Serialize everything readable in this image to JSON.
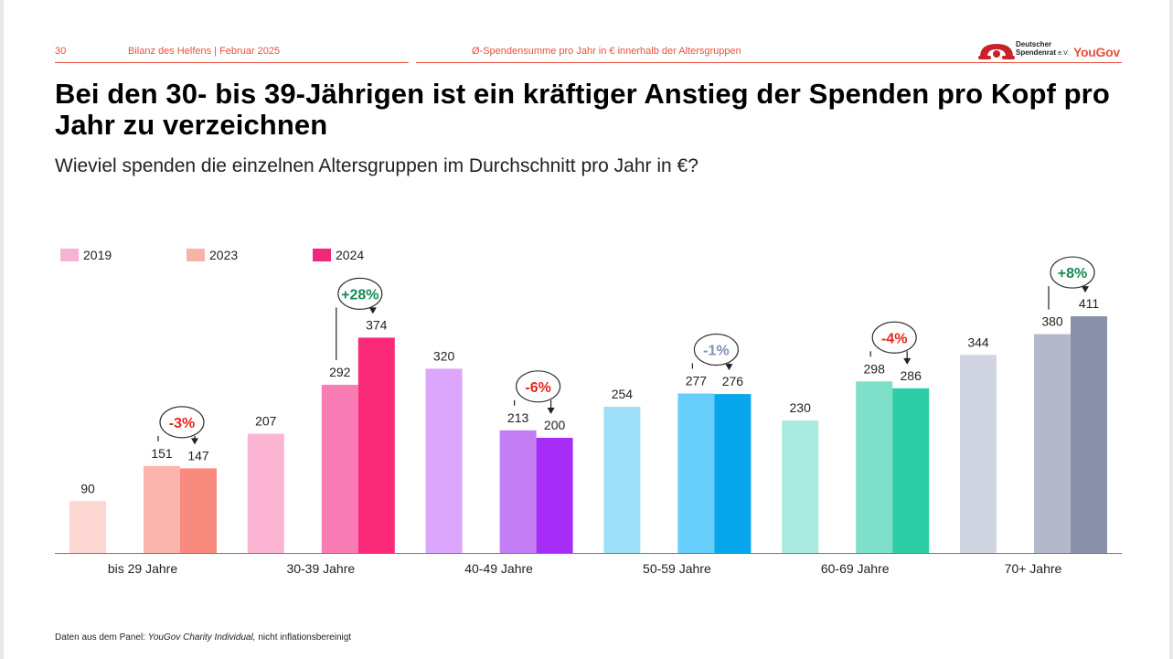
{
  "header": {
    "page_number": "30",
    "report": "Bilanz des Helfens | Februar 2025",
    "section": "Ø-Spendensumme pro Jahr in € innerhalb der Altersgruppen",
    "logo_dsr_line1": "Deutscher",
    "logo_dsr_line2": "Spendenrat",
    "logo_dsr_ev": "e.V.",
    "logo_yougov": "YouGov"
  },
  "title": "Bei den 30- bis 39-Jährigen ist ein kräftiger Anstieg der Spenden pro Kopf pro Jahr zu verzeichnen",
  "subtitle": "Wieviel spenden die einzelnen Altersgruppen im Durchschnitt pro Jahr in €?",
  "footnote": {
    "prefix": "Daten aus dem Panel: ",
    "source": "YouGov Charity Individual,",
    "suffix": " nicht inflationsbereinigt"
  },
  "chart_data": {
    "type": "bar",
    "categories": [
      "bis 29 Jahre",
      "30-39 Jahre",
      "40-49 Jahre",
      "50-59 Jahre",
      "60-69 Jahre",
      "70+ Jahre"
    ],
    "series": [
      {
        "name": "2019",
        "values": [
          90,
          207,
          320,
          254,
          230,
          344
        ]
      },
      {
        "name": "2023",
        "values": [
          151,
          292,
          213,
          277,
          298,
          380
        ]
      },
      {
        "name": "2024",
        "values": [
          147,
          374,
          200,
          276,
          286,
          411
        ]
      }
    ],
    "legend_position": "top-left",
    "legend_colors": [
      "#f7b3d0",
      "#f9b3a6",
      "#f0287a"
    ],
    "bar_colors": [
      [
        "#fbd6d3",
        "#fbb5ac",
        "#f88b7d"
      ],
      [
        "#fbb4d1",
        "#f97db4",
        "#fa2a78"
      ],
      [
        "#dba6fb",
        "#c37ef6",
        "#a52df7"
      ],
      [
        "#9ee0f8",
        "#67cdfa",
        "#08a6ea"
      ],
      [
        "#a9ebdf",
        "#7fe0c9",
        "#2dcda5"
      ],
      [
        "#d1d5e2",
        "#b3b9cb",
        "#8891a8"
      ]
    ],
    "changes": [
      {
        "label": "-3%",
        "color": "#e8231c"
      },
      {
        "label": "+28%",
        "color": "#138a52"
      },
      {
        "label": "-6%",
        "color": "#e8231c"
      },
      {
        "label": "-1%",
        "color": "#8190b8"
      },
      {
        "label": "-4%",
        "color": "#e8231c"
      },
      {
        "label": "+8%",
        "color": "#138a52"
      }
    ],
    "grid": false
  }
}
